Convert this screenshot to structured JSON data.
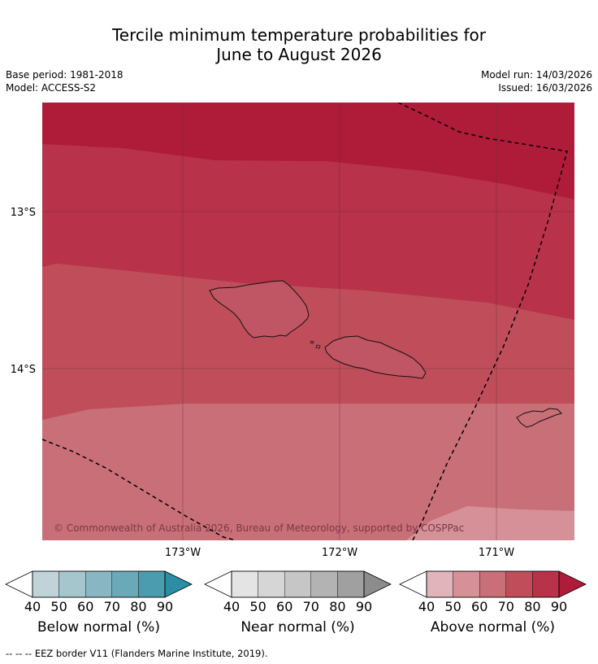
{
  "title": {
    "line1": "Tercile minimum temperature probabilities for",
    "line2": "June to August 2026"
  },
  "meta": {
    "base_period": "Base period: 1981-2018",
    "model": "Model: ACCESS-S2",
    "model_run": "Model run: 14/03/2026",
    "issued": "Issued: 16/03/2026"
  },
  "map": {
    "lat_labels": [
      "13°S",
      "14°S"
    ],
    "lon_labels": [
      "173°W",
      "172°W",
      "171°W"
    ],
    "copyright": "© Commonwealth of Australia 2026, Bureau of Meteorology, supported by COSPPac"
  },
  "legends": [
    {
      "name": "below",
      "label": "Below normal (%)",
      "ticks": [
        "40",
        "50",
        "60",
        "70",
        "80",
        "90"
      ],
      "colors": [
        "#bfd3d9",
        "#a5c6cc",
        "#88b6c2",
        "#6aa9b8",
        "#4b9cae",
        "#2b8ea4"
      ]
    },
    {
      "name": "near",
      "label": "Near normal (%)",
      "ticks": [
        "40",
        "50",
        "60",
        "70",
        "80",
        "90"
      ],
      "colors": [
        "#e4e4e4",
        "#d6d6d6",
        "#c6c6c6",
        "#b3b3b3",
        "#a0a0a0",
        "#8c8c8c"
      ]
    },
    {
      "name": "above",
      "label": "Above normal (%)",
      "ticks": [
        "40",
        "50",
        "60",
        "70",
        "80",
        "90"
      ],
      "colors": [
        "#e0b4ba",
        "#d59098",
        "#c96f78",
        "#bf4e5a",
        "#b8324a",
        "#ae1c3a"
      ]
    }
  ],
  "footer": "-- -- -- EEZ border V11 (Flanders Marine Institute, 2019)."
}
